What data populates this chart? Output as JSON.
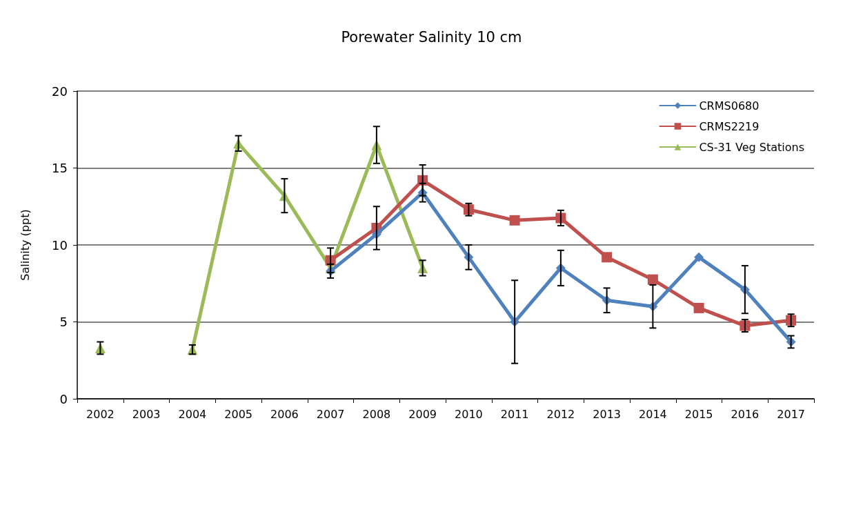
{
  "chart_data": {
    "type": "line",
    "title": "Porewater Salinity 10 cm",
    "ylabel": "Salinity (ppt)",
    "categories": [
      "2002",
      "2003",
      "2004",
      "2005",
      "2006",
      "2007",
      "2008",
      "2009",
      "2010",
      "2011",
      "2012",
      "2013",
      "2014",
      "2015",
      "2016",
      "2017"
    ],
    "series": [
      {
        "name": "CRMS0680",
        "color": "#4f81bd",
        "marker": "diamond",
        "values": [
          null,
          null,
          null,
          null,
          null,
          8.3,
          10.7,
          13.4,
          9.2,
          5.0,
          8.5,
          6.4,
          6.0,
          9.2,
          7.1,
          3.7
        ],
        "errors": [
          null,
          null,
          null,
          null,
          null,
          0.45,
          null,
          0.6,
          0.8,
          2.7,
          1.15,
          0.8,
          1.4,
          null,
          1.55,
          0.4
        ]
      },
      {
        "name": "CRMS2219",
        "color": "#c0504d",
        "marker": "square",
        "values": [
          null,
          null,
          null,
          null,
          null,
          9.0,
          11.1,
          14.2,
          12.3,
          11.6,
          11.75,
          9.2,
          7.75,
          5.9,
          4.75,
          5.1
        ],
        "errors": [
          null,
          null,
          null,
          null,
          null,
          0.8,
          1.4,
          1.0,
          0.4,
          null,
          0.5,
          null,
          null,
          null,
          0.4,
          0.4
        ]
      },
      {
        "name": "CS-31 Veg Stations",
        "color": "#9bbb59",
        "marker": "triangle",
        "values": [
          3.3,
          null,
          3.2,
          16.6,
          13.2,
          8.5,
          16.5,
          8.5,
          null,
          null,
          null,
          null,
          null,
          null,
          null,
          null
        ],
        "errors": [
          0.4,
          null,
          0.3,
          0.5,
          1.1,
          null,
          1.2,
          0.5,
          null,
          null,
          null,
          null,
          null,
          null,
          null,
          null
        ]
      }
    ],
    "ylim": [
      0,
      20
    ],
    "yticks": [
      0,
      5,
      10,
      15,
      20
    ],
    "grid": "y",
    "legend": "top right",
    "line_style": "solid"
  }
}
